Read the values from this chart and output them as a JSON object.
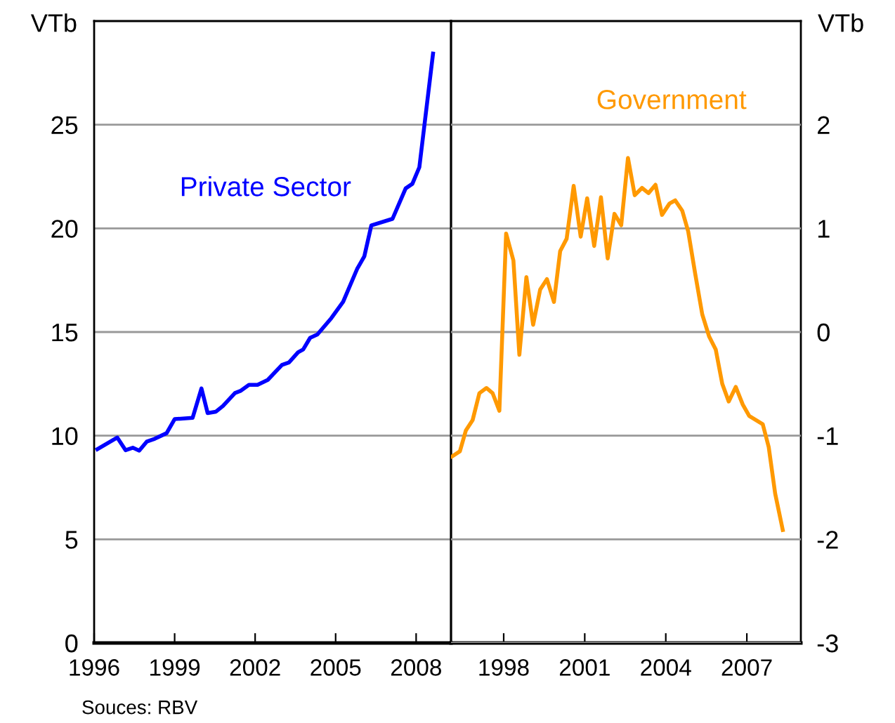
{
  "chart_data": [
    {
      "type": "line",
      "ylabel": "VTb",
      "xlim": [
        1996,
        2009.3
      ],
      "xticks": [
        1996,
        1999,
        2002,
        2005,
        2008
      ],
      "ylim": [
        0,
        30
      ],
      "yticks": [
        0,
        5,
        10,
        15,
        20,
        25
      ],
      "grid": "y",
      "legend": false,
      "marker": "none",
      "line_style": "solid",
      "series": [
        {
          "name": "Private Sector",
          "color": "#0000ff",
          "x": [
            1996.12,
            1996.86,
            1997.17,
            1997.44,
            1997.68,
            1997.96,
            1998.26,
            1998.7,
            1999.0,
            1999.67,
            2000.0,
            2000.23,
            2000.54,
            2000.8,
            2001.25,
            2001.47,
            2001.77,
            2002.09,
            2002.47,
            2003.0,
            2003.26,
            2003.6,
            2003.79,
            2004.05,
            2004.32,
            2004.84,
            2005.28,
            2005.8,
            2006.07,
            2006.33,
            2007.12,
            2007.61,
            2007.86,
            2008.12,
            2008.63
          ],
          "values": [
            9.35,
            9.91,
            9.3,
            9.42,
            9.28,
            9.71,
            9.85,
            10.12,
            10.8,
            10.86,
            12.28,
            11.09,
            11.16,
            11.43,
            12.06,
            12.17,
            12.45,
            12.45,
            12.69,
            13.41,
            13.53,
            14.02,
            14.16,
            14.72,
            14.88,
            15.67,
            16.46,
            18.04,
            18.65,
            20.14,
            20.46,
            21.93,
            22.15,
            22.95,
            28.43
          ]
        }
      ]
    },
    {
      "type": "line",
      "y2label": "VTb",
      "xlim": [
        1996.05,
        2009.0
      ],
      "xticks": [
        1998,
        2001,
        2004,
        2007
      ],
      "y2lim": [
        -3,
        3
      ],
      "y2ticks": [
        -3,
        -2,
        -1,
        0,
        1,
        2
      ],
      "grid": "y",
      "legend": false,
      "marker": "none",
      "line_style": "solid",
      "annotations": [
        "Souces: RBV"
      ],
      "series": [
        {
          "name": "Government",
          "color": "#ff9900",
          "axis": "y2",
          "x": [
            1996.09,
            1996.38,
            1996.6,
            1996.85,
            1997.1,
            1997.36,
            1997.59,
            1997.84,
            1998.09,
            1998.36,
            1998.58,
            1998.84,
            1999.09,
            1999.35,
            1999.6,
            1999.86,
            2000.09,
            2000.33,
            2000.59,
            2000.85,
            2001.09,
            2001.35,
            2001.6,
            2001.85,
            2002.1,
            2002.35,
            2002.6,
            2002.85,
            2003.12,
            2003.36,
            2003.62,
            2003.86,
            2004.14,
            2004.35,
            2004.61,
            2004.83,
            2005.09,
            2005.35,
            2005.6,
            2005.85,
            2006.09,
            2006.33,
            2006.59,
            2006.85,
            2007.09,
            2007.59,
            2007.81,
            2008.05,
            2008.33
          ],
          "values": [
            -1.2,
            -1.15,
            -0.95,
            -0.85,
            -0.59,
            -0.54,
            -0.59,
            -0.76,
            0.95,
            0.69,
            -0.22,
            0.53,
            0.07,
            0.41,
            0.51,
            0.29,
            0.78,
            0.9,
            1.41,
            0.92,
            1.29,
            0.83,
            1.3,
            0.71,
            1.14,
            1.03,
            1.68,
            1.32,
            1.39,
            1.34,
            1.42,
            1.13,
            1.24,
            1.27,
            1.17,
            0.97,
            0.56,
            0.17,
            -0.04,
            -0.17,
            -0.5,
            -0.67,
            -0.53,
            -0.7,
            -0.81,
            -0.89,
            -1.11,
            -1.56,
            -1.91
          ]
        }
      ]
    }
  ]
}
